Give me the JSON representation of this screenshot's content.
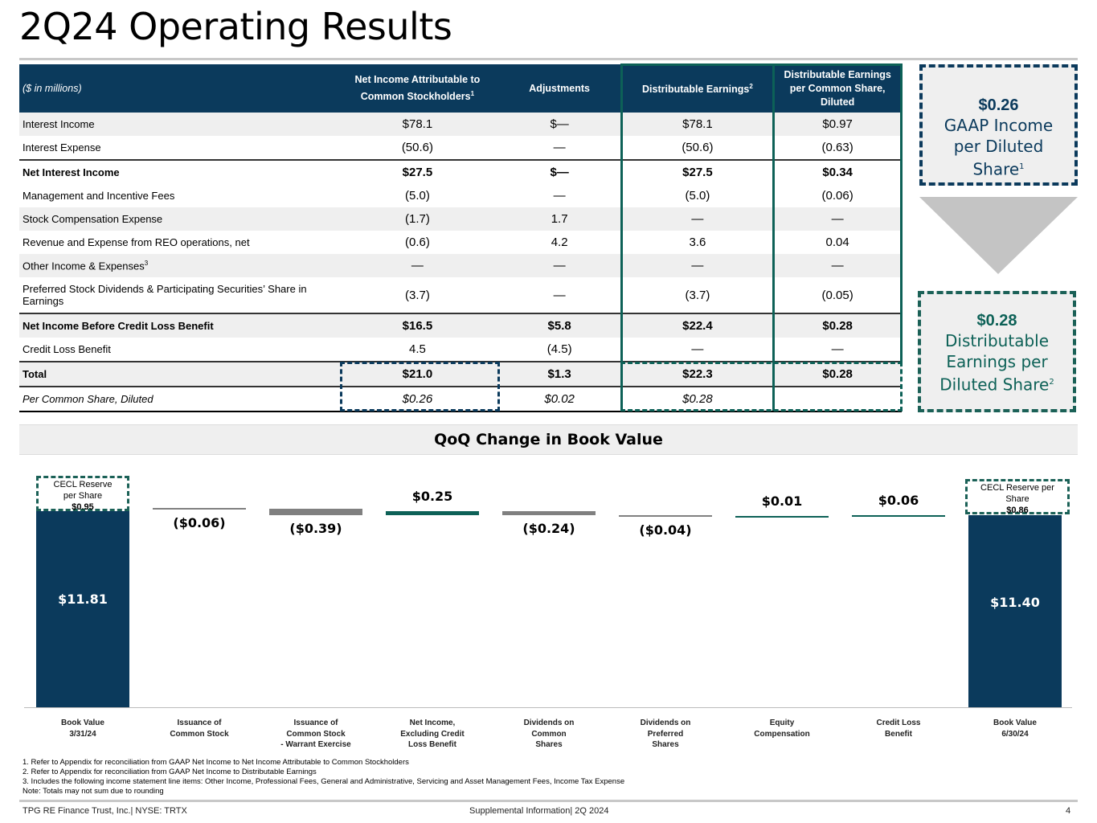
{
  "title": "2Q24 Operating Results",
  "table": {
    "headers": {
      "label": "($ in millions)",
      "net_income": "Net Income Attributable to Common Stockholders",
      "net_income_sup": "1",
      "adjustments": "Adjustments",
      "distributable": "Distributable Earnings",
      "distributable_sup": "2",
      "per_share": "Distributable Earnings per Common Share, Diluted"
    },
    "rows": [
      {
        "label": "Interest Income",
        "c1": "$78.1",
        "c2": "$—",
        "c3": "$78.1",
        "c4": "$0.97"
      },
      {
        "label": "Interest Expense",
        "c1": "(50.6)",
        "c2": "—",
        "c3": "(50.6)",
        "c4": "(0.63)"
      },
      {
        "label": "Net Interest Income",
        "c1": "$27.5",
        "c2": "$—",
        "c3": "$27.5",
        "c4": "$0.34"
      },
      {
        "label": "Management and Incentive Fees",
        "c1": "(5.0)",
        "c2": "—",
        "c3": "(5.0)",
        "c4": "(0.06)"
      },
      {
        "label": "Stock Compensation Expense",
        "c1": "(1.7)",
        "c2": "1.7",
        "c3": "—",
        "c4": "—"
      },
      {
        "label": "Revenue and Expense from REO operations, net",
        "c1": "(0.6)",
        "c2": "4.2",
        "c3": "3.6",
        "c4": "0.04"
      },
      {
        "label": "Other Income & Expenses",
        "sup": "3",
        "c1": "—",
        "c2": "—",
        "c3": "—",
        "c4": "—"
      },
      {
        "label": "Preferred Stock Dividends & Participating Securities’ Share in Earnings",
        "c1": "(3.7)",
        "c2": "—",
        "c3": "(3.7)",
        "c4": "(0.05)"
      },
      {
        "label": " Net Income Before Credit Loss Benefit",
        "c1": "$16.5",
        "c2": "$5.8",
        "c3": "$22.4",
        "c4": "$0.28"
      },
      {
        "label": "Credit Loss Benefit",
        "c1": "4.5",
        "c2": "(4.5)",
        "c3": "—",
        "c4": "—"
      },
      {
        "label": "Total",
        "c1": "$21.0",
        "c2": "$1.3",
        "c3": "$22.3",
        "c4": "$0.28"
      },
      {
        "label": "Per Common Share, Diluted",
        "c1": "$0.26",
        "c2": "$0.02",
        "c3": "$0.28",
        "c4": ""
      }
    ]
  },
  "callouts": {
    "gaap_value": "$0.26",
    "gaap_text": "GAAP Income per Diluted Share",
    "gaap_sup": "1",
    "de_value": "$0.28",
    "de_text": "Distributable Earnings per Diluted Share",
    "de_sup": "2"
  },
  "chart_title": "QoQ Change in Book Value",
  "chart_data": {
    "type": "waterfall",
    "title": "QoQ Change in Book Value",
    "categories": [
      "Book Value 3/31/24",
      "Issuance of Common Stock",
      "Issuance of Common Stock - Warrant Exercise",
      "Net Income, Excluding Credit Loss Benefit",
      "Dividends on Common Shares",
      "Dividends on Preferred Shares",
      "Equity Compensation",
      "Credit Loss Benefit",
      "Book Value 6/30/24"
    ],
    "values": [
      11.81,
      -0.06,
      -0.39,
      0.25,
      -0.24,
      -0.04,
      0.01,
      0.06,
      11.4
    ],
    "labels": [
      "$11.81",
      "($0.06)",
      "($0.39)",
      "$0.25",
      "($0.24)",
      "($0.04)",
      "$0.01",
      "$0.06",
      "$11.40"
    ],
    "kinds": [
      "total",
      "neg",
      "neg",
      "pos",
      "neg",
      "neg",
      "pos",
      "pos",
      "total"
    ],
    "colors": {
      "total": "#0b3a5c",
      "neg": "#808080",
      "pos": "#0d6157"
    },
    "cecl": [
      {
        "label": "CECL Reserve per Share",
        "value": "$0.95"
      },
      {
        "label": "CECL Reserve per Share",
        "value": "$0.86"
      }
    ]
  },
  "category_lines": [
    [
      "Book Value",
      "3/31/24"
    ],
    [
      "Issuance of",
      "Common Stock"
    ],
    [
      "Issuance of",
      "Common Stock",
      "- Warrant Exercise"
    ],
    [
      "Net Income,",
      "Excluding Credit",
      "Loss Benefit"
    ],
    [
      "Dividends on",
      "Common",
      "Shares"
    ],
    [
      "Dividends on",
      "Preferred",
      "Shares"
    ],
    [
      "Equity",
      "Compensation"
    ],
    [
      "Credit Loss",
      "Benefit"
    ],
    [
      "Book Value",
      "6/30/24"
    ]
  ],
  "footnotes": [
    "1. Refer to Appendix for reconciliation from GAAP Net Income  to Net Income  Attributable to Common Stockholders",
    "2. Refer to Appendix for reconciliation from GAAP Net Income  to Distributable Earnings",
    "3. Includes the following income statement line items: Other Income, Professional Fees, General and Administrative, Servicing and Asset Management Fees, Income Tax Expense",
    "Note: Totals may not sum due to rounding"
  ],
  "footer": {
    "left": "TPG RE Finance Trust, Inc.| NYSE: TRTX",
    "center": "Supplemental Information| 2Q 2024",
    "page": "4"
  }
}
